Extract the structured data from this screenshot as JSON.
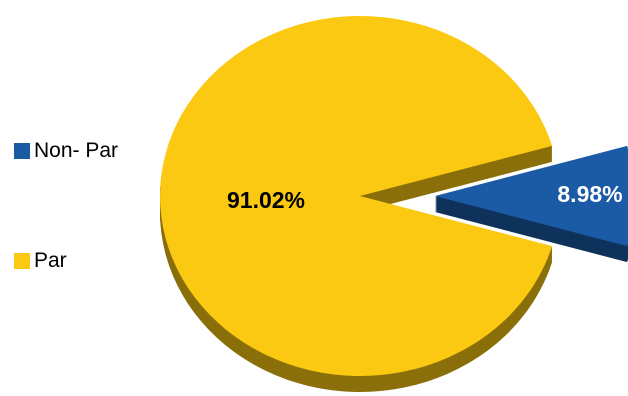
{
  "chart_data": {
    "type": "pie",
    "title": "",
    "categories": [
      "Non- Par",
      "Par"
    ],
    "values": [
      8.98,
      91.02
    ],
    "data_labels": [
      "8.98%",
      "91.02%"
    ],
    "colors": [
      "#1B5BA6",
      "#FBC912"
    ],
    "label_colors": [
      "#FFFFFF",
      "#000000"
    ],
    "exploded": [
      true,
      false
    ],
    "style": "3d",
    "legend_position": "left"
  }
}
